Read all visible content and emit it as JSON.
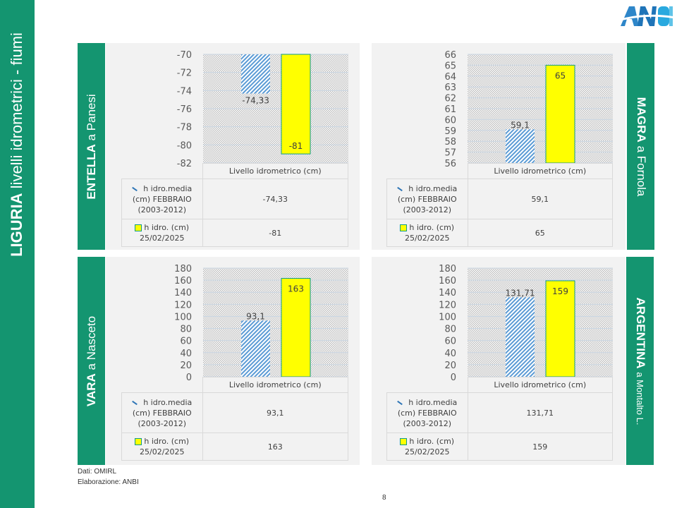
{
  "sidebar": {
    "title_bold": "LIGURIA",
    "title_rest": "livelli idrometrici - fiumi"
  },
  "logo": {
    "text": "ANBI"
  },
  "colors": {
    "brand_green": "#149570",
    "bar_yellow": "#ffff00",
    "bar_border": "#0e9b8a",
    "hatch_blue": "#5b9bd5",
    "panel_bg": "#f2f2f2"
  },
  "footer": {
    "source": "Dati: OMIRL",
    "elaboration": "Elaborazione: ANBI",
    "page_number": "8"
  },
  "chart_data": [
    {
      "type": "bar",
      "station_bold": "ENTELLA",
      "station_rest": "a Panesi",
      "category": "Livello idrometrico (cm)",
      "ylim": [
        -82,
        -70
      ],
      "yticks": [
        "-70",
        "-72",
        "-74",
        "-76",
        "-78",
        "-80",
        "-82"
      ],
      "ytick_values": [
        -70,
        -72,
        -74,
        -76,
        -78,
        -80,
        -82
      ],
      "series": [
        {
          "name_lines": [
            "h idro.media",
            "(cm) FEBBRAIO",
            "(2003-2012)"
          ],
          "value": -74.33,
          "label": "-74,33",
          "style": "hatch"
        },
        {
          "name_lines": [
            "h idro. (cm)",
            "25/02/2025"
          ],
          "value": -81,
          "label": "-81",
          "style": "yellow"
        }
      ]
    },
    {
      "type": "bar",
      "station_bold": "MAGRA",
      "station_rest": "a Fornola",
      "category": "Livello idrometrico (cm)",
      "ylim": [
        56,
        66
      ],
      "yticks": [
        "66",
        "65",
        "64",
        "63",
        "62",
        "61",
        "60",
        "59",
        "58",
        "57",
        "56"
      ],
      "ytick_values": [
        66,
        65,
        64,
        63,
        62,
        61,
        60,
        59,
        58,
        57,
        56
      ],
      "series": [
        {
          "name_lines": [
            "h idro.media",
            "(cm) FEBBRAIO",
            "(2003-2012)"
          ],
          "value": 59.1,
          "label": "59,1",
          "style": "hatch"
        },
        {
          "name_lines": [
            "h idro. (cm)",
            "25/02/2025"
          ],
          "value": 65,
          "label": "65",
          "style": "yellow"
        }
      ]
    },
    {
      "type": "bar",
      "station_bold": "VARA",
      "station_rest": "a Nasceto",
      "category": "Livello idrometrico (cm)",
      "ylim": [
        0,
        180
      ],
      "yticks": [
        "180",
        "160",
        "140",
        "120",
        "100",
        "80",
        "60",
        "40",
        "20",
        "0"
      ],
      "ytick_values": [
        180,
        160,
        140,
        120,
        100,
        80,
        60,
        40,
        20,
        0
      ],
      "series": [
        {
          "name_lines": [
            "h idro.media",
            "(cm) FEBBRAIO",
            "(2003-2012)"
          ],
          "value": 93.1,
          "label": "93,1",
          "style": "hatch"
        },
        {
          "name_lines": [
            "h idro. (cm)",
            "25/02/2025"
          ],
          "value": 163,
          "label": "163",
          "style": "yellow"
        }
      ]
    },
    {
      "type": "bar",
      "station_bold": "ARGENTINA",
      "station_rest": "a Montalto L.",
      "category": "Livello idrometrico (cm)",
      "ylim": [
        0,
        180
      ],
      "yticks": [
        "180",
        "160",
        "140",
        "120",
        "100",
        "80",
        "60",
        "40",
        "20",
        "0"
      ],
      "ytick_values": [
        180,
        160,
        140,
        120,
        100,
        80,
        60,
        40,
        20,
        0
      ],
      "series": [
        {
          "name_lines": [
            "h idro.media",
            "(cm) FEBBRAIO",
            "(2003-2012)"
          ],
          "value": 131.71,
          "label": "131,71",
          "style": "hatch"
        },
        {
          "name_lines": [
            "h idro. (cm)",
            "25/02/2025"
          ],
          "value": 159,
          "label": "159",
          "style": "yellow"
        }
      ]
    }
  ]
}
